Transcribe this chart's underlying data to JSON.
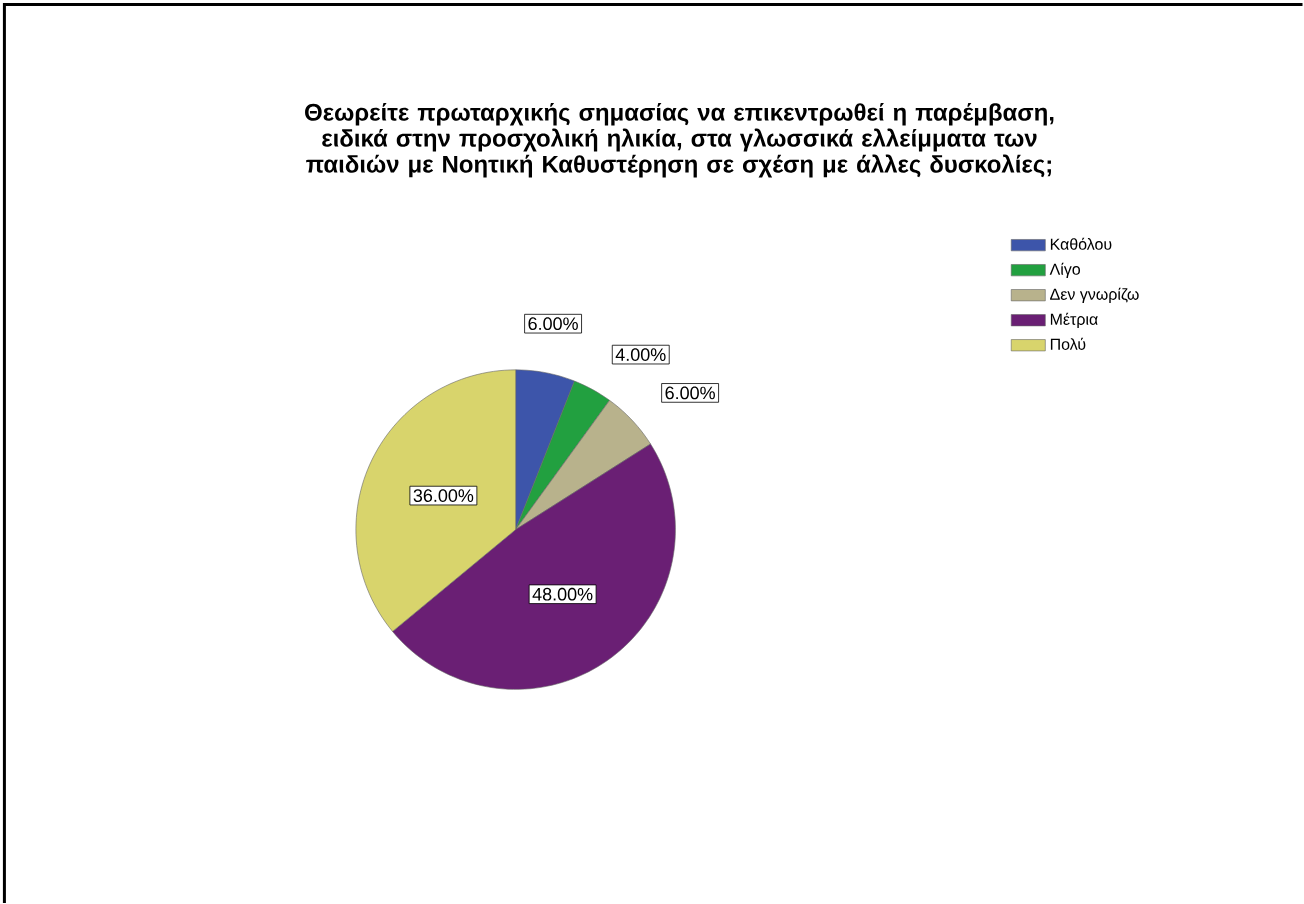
{
  "chart_data": {
    "type": "pie",
    "title": "Θεωρείτε πρωταρχικής σημασίας να επικεντρωθεί η παρέμβαση, ειδικά στην προσχολική ηλικία, στα γλωσσικά ελλείμματα των παιδιών με Νοητική Καθυστέρηση σε σχέση με άλλες δυσκολίες;",
    "categories": [
      "Καθόλου",
      "Λίγο",
      "Δεν γνωρίζω",
      "Μέτρια",
      "Πολύ"
    ],
    "values": [
      6,
      4,
      6,
      48,
      36
    ],
    "colors": [
      "#3d55aa",
      "#22a040",
      "#b8b28c",
      "#6a1f74",
      "#d8d46c"
    ],
    "value_labels": [
      "6.00%",
      "4.00%",
      "6.00%",
      "48.00%",
      "36.00%"
    ],
    "legend": "right"
  }
}
